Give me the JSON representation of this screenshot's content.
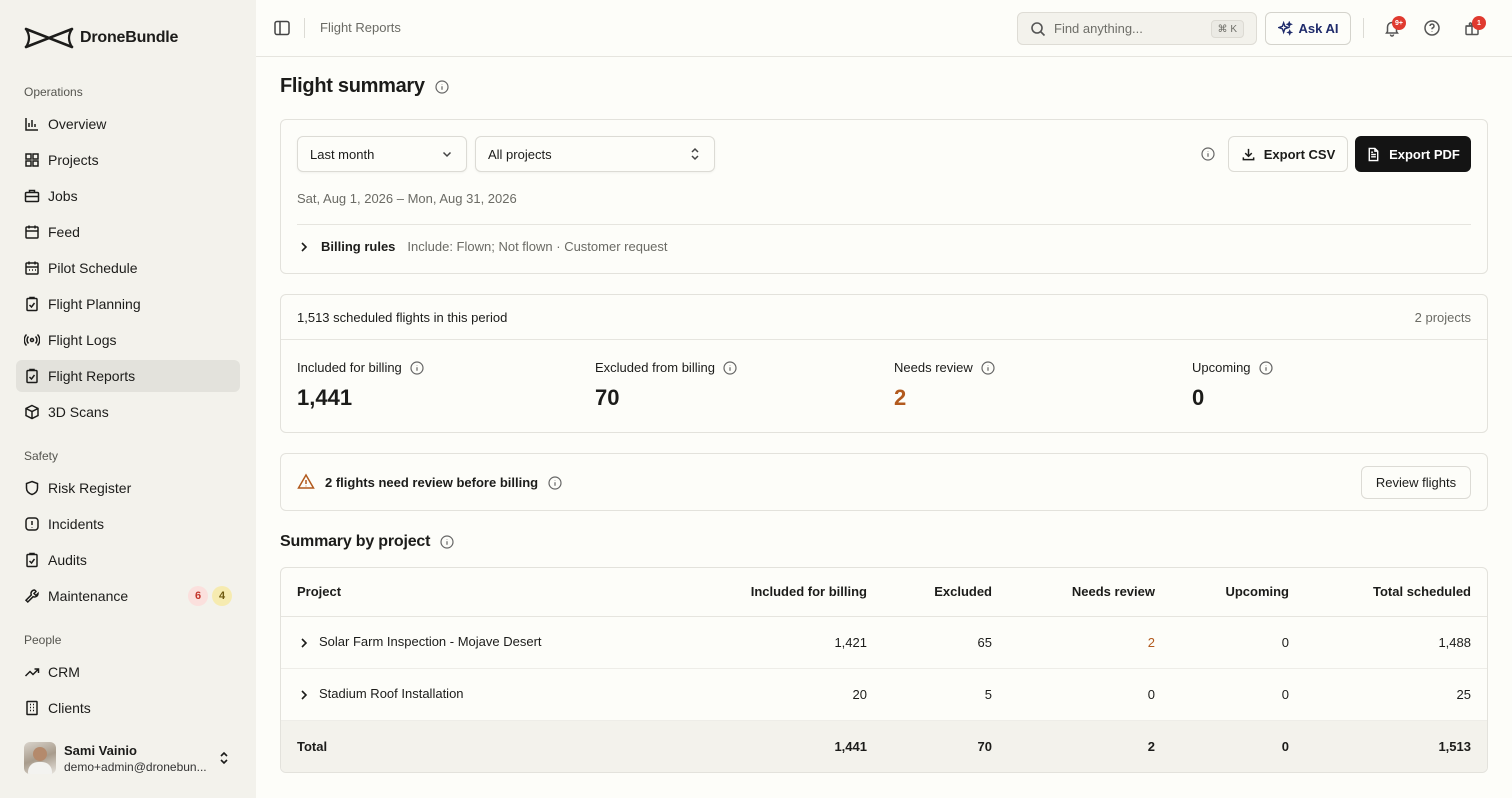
{
  "brand": {
    "name": "DroneBundle"
  },
  "sidebar": {
    "sections": [
      {
        "label": "Operations"
      },
      {
        "label": "Safety"
      },
      {
        "label": "People"
      }
    ],
    "items": [
      {
        "label": "Overview",
        "icon": "bar-chart-icon"
      },
      {
        "label": "Projects",
        "icon": "grid-icon"
      },
      {
        "label": "Jobs",
        "icon": "briefcase-icon"
      },
      {
        "label": "Feed",
        "icon": "calendar-icon"
      },
      {
        "label": "Pilot Schedule",
        "icon": "calendar-grid-icon"
      },
      {
        "label": "Flight Planning",
        "icon": "clipboard-check-icon"
      },
      {
        "label": "Flight Logs",
        "icon": "radio-icon"
      },
      {
        "label": "Flight Reports",
        "icon": "clipboard-report-icon",
        "active": true
      },
      {
        "label": "3D Scans",
        "icon": "cube-icon"
      },
      {
        "label": "Risk Register",
        "icon": "shield-icon"
      },
      {
        "label": "Incidents",
        "icon": "alert-square-icon"
      },
      {
        "label": "Audits",
        "icon": "clipboard-check-icon"
      },
      {
        "label": "Maintenance",
        "icon": "wrench-icon",
        "badges": [
          "6",
          "4"
        ]
      },
      {
        "label": "CRM",
        "icon": "trending-up-icon"
      },
      {
        "label": "Clients",
        "icon": "building-icon"
      }
    ],
    "user": {
      "name": "Sami Vainio",
      "email": "demo+admin@dronebun..."
    }
  },
  "topbar": {
    "breadcrumb": "Flight Reports",
    "search_placeholder": "Find anything...",
    "search_shortcut": "⌘ K",
    "ask_ai": "Ask AI",
    "notifications_badge": "9+",
    "gift_badge": "1"
  },
  "page": {
    "title": "Flight summary",
    "filters": {
      "period": "Last month",
      "project": "All projects"
    },
    "export_csv": "Export CSV",
    "export_pdf": "Export PDF",
    "date_range": "Sat, Aug 1, 2026 – Mon, Aug 31, 2026",
    "billing_rules": {
      "label": "Billing rules",
      "description": "Include: Flown; Not flown · Customer request"
    },
    "stats": {
      "scheduled": "1,513 scheduled flights in this period",
      "projects": "2 projects",
      "included": {
        "label": "Included for billing",
        "value": "1,441"
      },
      "excluded": {
        "label": "Excluded from billing",
        "value": "70"
      },
      "review": {
        "label": "Needs review",
        "value": "2"
      },
      "upcoming": {
        "label": "Upcoming",
        "value": "0"
      }
    },
    "review_banner": {
      "text": "2 flights need review before billing",
      "button": "Review flights"
    },
    "summary": {
      "title": "Summary by project",
      "headers": [
        "Project",
        "Included for billing",
        "Excluded",
        "Needs review",
        "Upcoming",
        "Total scheduled"
      ],
      "rows": [
        {
          "project": "Solar Farm Inspection - Mojave Desert",
          "included": "1,421",
          "excluded": "65",
          "review": "2",
          "upcoming": "0",
          "total": "1,488"
        },
        {
          "project": "Stadium Roof Installation",
          "included": "20",
          "excluded": "5",
          "review": "0",
          "upcoming": "0",
          "total": "25"
        }
      ],
      "total": {
        "label": "Total",
        "included": "1,441",
        "excluded": "70",
        "review": "2",
        "upcoming": "0",
        "total": "1,513"
      }
    }
  },
  "colors": {
    "warning": "#b25a1e",
    "accent_dark": "#141414",
    "sidebar_bg": "#f3f2ec",
    "notif_red": "#e03a2f"
  }
}
